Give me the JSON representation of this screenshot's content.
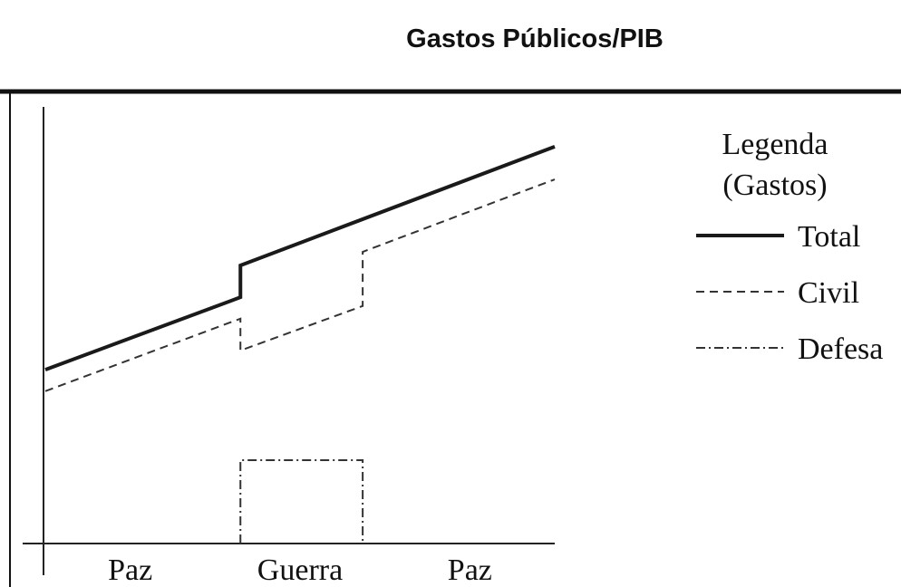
{
  "chart_data": {
    "type": "line",
    "title": "Gastos Públicos/PIB",
    "categories": [
      "Paz",
      "Guerra",
      "Paz"
    ],
    "legend_title": [
      "Legenda",
      "(Gastos)"
    ],
    "legend": "right",
    "xlim": [
      0,
      100
    ],
    "ylim": [
      0,
      100
    ],
    "series": [
      {
        "name": "Total",
        "color": "#1a1a1a",
        "dash": "solid",
        "x": [
          0,
          38.3,
          38.3,
          100
        ],
        "values": [
          39.8,
          56.4,
          63.7,
          90.9
        ]
      },
      {
        "name": "Civil",
        "color": "#333333",
        "dash": "dashed",
        "x": [
          0,
          38.3,
          38.3,
          62.3,
          62.3,
          100
        ],
        "values": [
          34.9,
          51.5,
          44.2,
          54.4,
          66.8,
          83.4
        ]
      },
      {
        "name": "Defesa",
        "color": "#333333",
        "dash": "dashdot",
        "x": [
          38.3,
          38.3,
          62.3,
          62.3
        ],
        "values": [
          0,
          19.1,
          19.1,
          0
        ]
      }
    ]
  }
}
